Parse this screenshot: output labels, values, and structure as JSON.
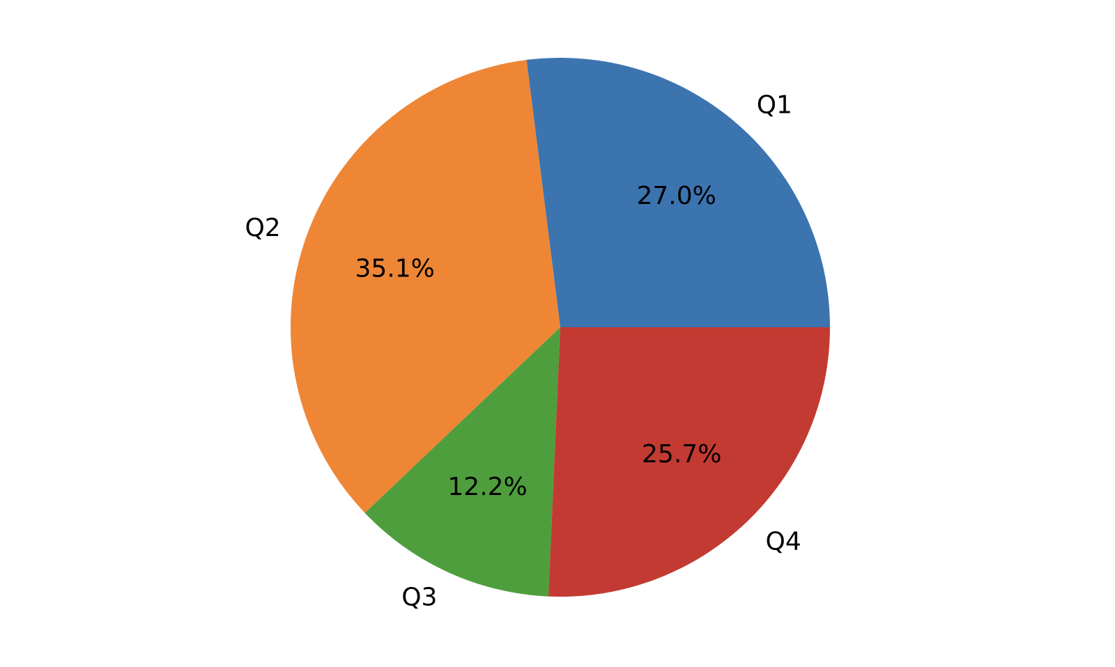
{
  "chart_data": {
    "type": "pie",
    "categories": [
      "Q1",
      "Q2",
      "Q3",
      "Q4"
    ],
    "values": [
      27.0,
      35.1,
      12.2,
      25.7
    ],
    "pct_labels": [
      "27.0%",
      "35.1%",
      "12.2%",
      "25.7%"
    ],
    "colors": [
      "#3c74b0",
      "#ee8636",
      "#4f9e3d",
      "#c33a32"
    ],
    "title": "",
    "legend_position": "none",
    "start_angle_deg": 0,
    "direction": "counterclockwise",
    "label_color": "#000000",
    "background_color": "#ffffff"
  }
}
